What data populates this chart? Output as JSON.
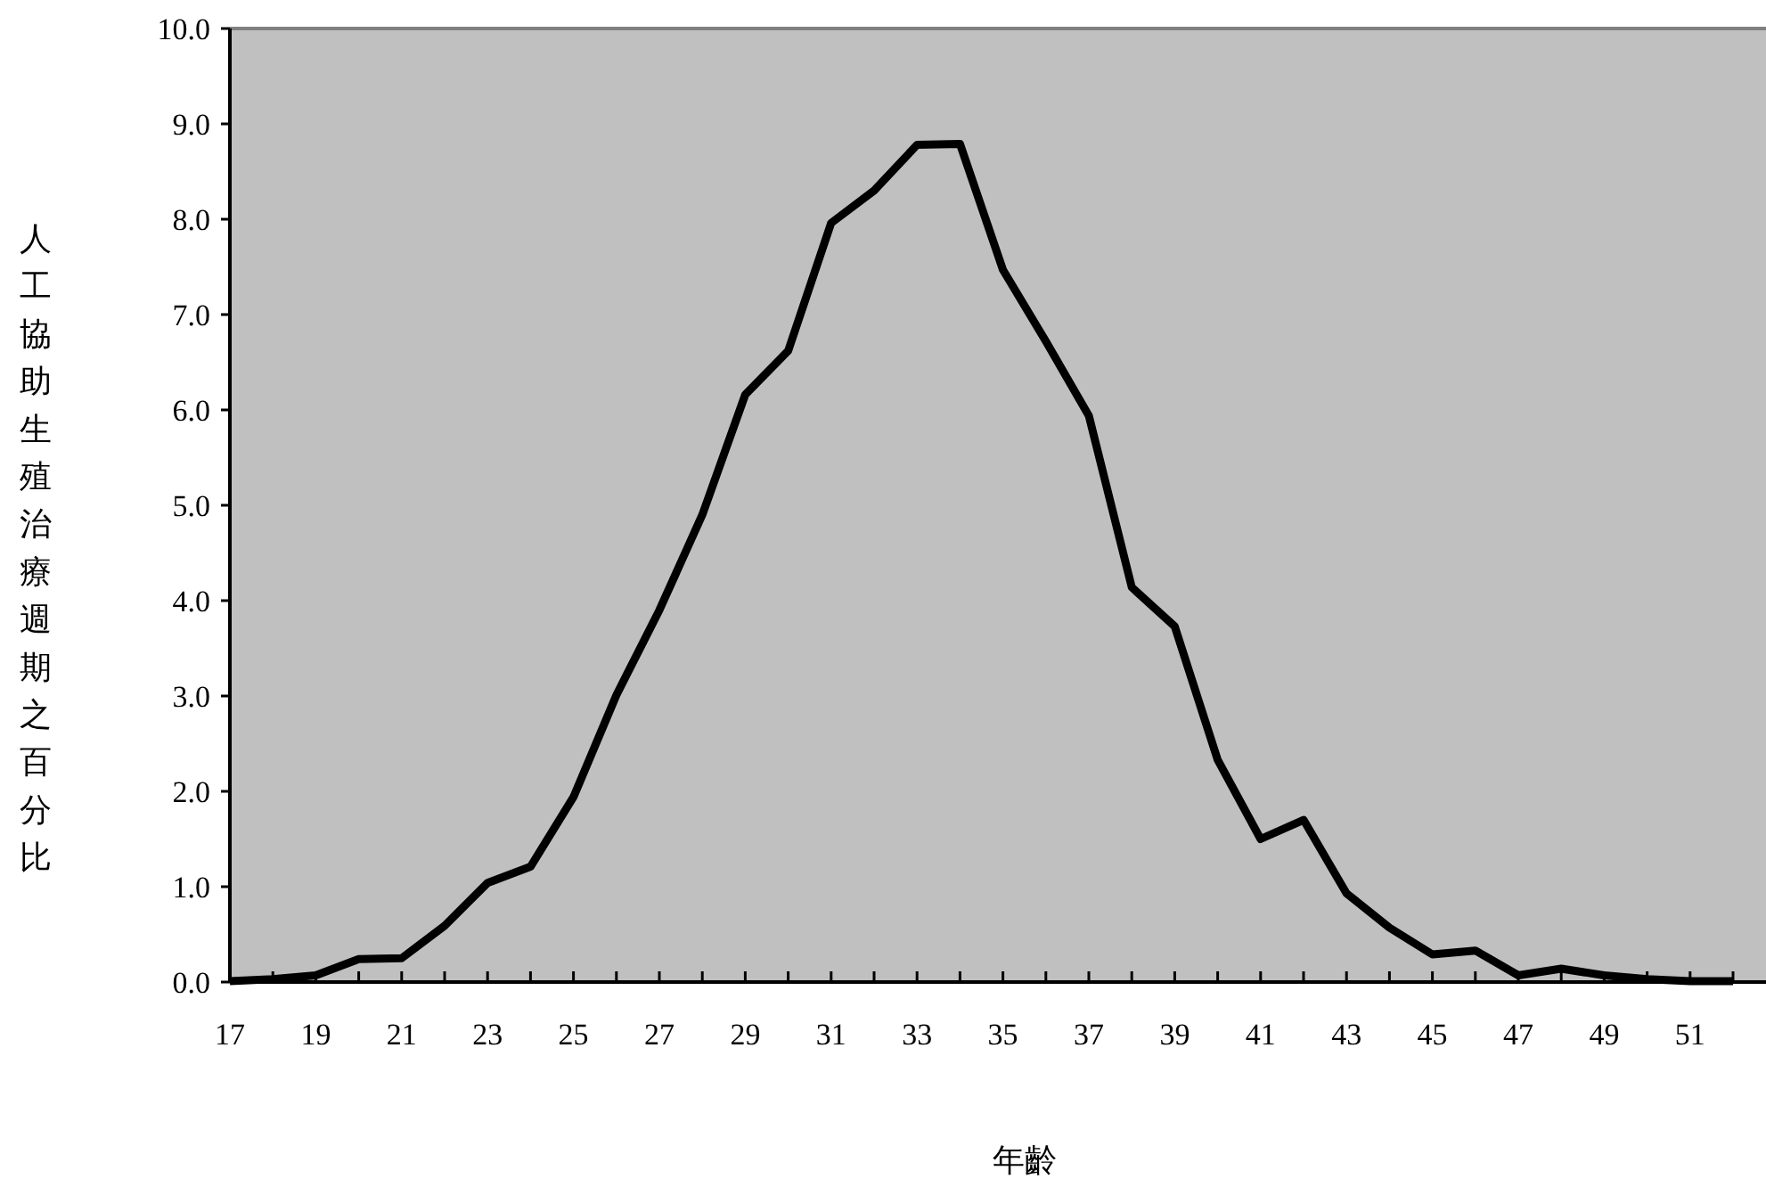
{
  "chart_data": {
    "type": "line",
    "xlabel": "年齡",
    "ylabel": "人工協助生殖治療週期之百分比",
    "categories": [
      "17",
      null,
      "19",
      null,
      "21",
      null,
      "23",
      null,
      "25",
      null,
      "27",
      null,
      "29",
      null,
      "31",
      null,
      "33",
      null,
      "35",
      null,
      "37",
      null,
      "39",
      null,
      "41",
      null,
      "43",
      null,
      "45",
      null,
      "47",
      null,
      "49",
      null,
      "51",
      null
    ],
    "values": [
      0.01,
      0.03,
      0.07,
      0.24,
      0.25,
      0.59,
      1.04,
      1.21,
      1.94,
      3.01,
      3.9,
      4.9,
      6.16,
      6.62,
      7.96,
      8.3,
      8.78,
      8.79,
      7.47,
      6.72,
      5.94,
      4.14,
      3.73,
      2.33,
      1.5,
      1.7,
      0.93,
      0.57,
      0.29,
      0.33,
      0.07,
      0.14,
      0.07,
      0.03,
      0.01,
      0.01
    ],
    "color": "#000000",
    "ylim": [
      0,
      10
    ],
    "yticks": [
      {
        "value": 0,
        "label": "0.0"
      },
      {
        "value": 1,
        "label": "1.0"
      },
      {
        "value": 2,
        "label": "2.0"
      },
      {
        "value": 3,
        "label": "3.0"
      },
      {
        "value": 4,
        "label": "4.0"
      },
      {
        "value": 5,
        "label": "5.0"
      },
      {
        "value": 6,
        "label": "6.0"
      },
      {
        "value": 7,
        "label": "7.0"
      },
      {
        "value": 8,
        "label": "8.0"
      },
      {
        "value": 9,
        "label": "9.0"
      },
      {
        "value": 10,
        "label": "10.0"
      }
    ]
  }
}
